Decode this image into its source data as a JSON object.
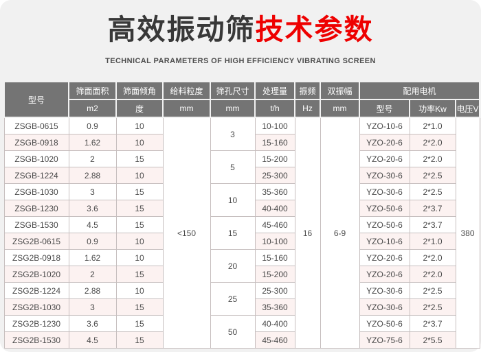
{
  "header": {
    "title_black": "高效振动筛",
    "title_red": "技术参数",
    "subtitle": "TECHNICAL PARAMETERS OF HIGH EFFICIENCY VIBRATING SCREEN"
  },
  "colors": {
    "page_bg": "#f1f1f1",
    "table_header_bg": "#747474",
    "table_header_text": "#ffffff",
    "row_alt_bg": "#fcf2f1",
    "row_bg": "#ffffff",
    "border": "#c6bebe",
    "title_black": "#383838",
    "title_red": "#ee0000",
    "body_text": "#4a4a4a"
  },
  "table": {
    "header": {
      "model": "型号",
      "screen_area": "筛面面积",
      "screen_area_unit": "m2",
      "screen_incline": "筛面倾角",
      "screen_incline_unit": "度",
      "feed_size": "给料粒度",
      "feed_size_unit": "mm",
      "mesh_size": "筛孔尺寸",
      "mesh_size_unit": "mm",
      "capacity": "处理量",
      "capacity_unit": "t/h",
      "frequency": "振频",
      "frequency_unit": "Hz",
      "amplitude": "双振幅",
      "amplitude_unit": "mm",
      "motor": "配用电机",
      "motor_model": "型号",
      "motor_power": "功率Kw",
      "motor_voltage": "电压V"
    },
    "merged": {
      "feed_size": "<150",
      "frequency": "16",
      "amplitude": "6-9",
      "voltage": "380"
    },
    "mesh_sizes": [
      "3",
      "5",
      "10",
      "15",
      "20",
      "25",
      "50"
    ],
    "rows": [
      {
        "model": "ZSGB-0615",
        "area": "0.9",
        "incline": "10",
        "capacity": "10-100",
        "motor_model": "YZO-10-6",
        "power": "2*1.0"
      },
      {
        "model": "ZSGB-0918",
        "area": "1.62",
        "incline": "10",
        "capacity": "15-160",
        "motor_model": "YZO-20-6",
        "power": "2*2.0"
      },
      {
        "model": "ZSGB-1020",
        "area": "2",
        "incline": "15",
        "capacity": "15-200",
        "motor_model": "YZO-20-6",
        "power": "2*2.0"
      },
      {
        "model": "ZSGB-1224",
        "area": "2.88",
        "incline": "10",
        "capacity": "25-300",
        "motor_model": "YZO-30-6",
        "power": "2*2.5"
      },
      {
        "model": "ZSGB-1030",
        "area": "3",
        "incline": "15",
        "capacity": "35-360",
        "motor_model": "YZO-30-6",
        "power": "2*2.5"
      },
      {
        "model": "ZSGB-1230",
        "area": "3.6",
        "incline": "15",
        "capacity": "40-400",
        "motor_model": "YZO-50-6",
        "power": "2*3.7"
      },
      {
        "model": "ZSGB-1530",
        "area": "4.5",
        "incline": "15",
        "capacity": "45-460",
        "motor_model": "YZO-50-6",
        "power": "2*3.7"
      },
      {
        "model": "ZSG2B-0615",
        "area": "0.9",
        "incline": "10",
        "capacity": "10-100",
        "motor_model": "YZO-10-6",
        "power": "2*1.0"
      },
      {
        "model": "ZSG2B-0918",
        "area": "1.62",
        "incline": "10",
        "capacity": "15-160",
        "motor_model": "YZO-20-6",
        "power": "2*2.0"
      },
      {
        "model": "ZSG2B-1020",
        "area": "2",
        "incline": "15",
        "capacity": "15-200",
        "motor_model": "YZO-20-6",
        "power": "2*2.0"
      },
      {
        "model": "ZSG2B-1224",
        "area": "2.88",
        "incline": "10",
        "capacity": "25-300",
        "motor_model": "YZO-30-6",
        "power": "2*2.5"
      },
      {
        "model": "ZSG2B-1030",
        "area": "3",
        "incline": "15",
        "capacity": "35-360",
        "motor_model": "YZO-30-6",
        "power": "2*2.5"
      },
      {
        "model": "ZSG2B-1230",
        "area": "3.6",
        "incline": "15",
        "capacity": "40-400",
        "motor_model": "YZO-50-6",
        "power": "2*3.7"
      },
      {
        "model": "ZSG2B-1530",
        "area": "4.5",
        "incline": "15",
        "capacity": "45-460",
        "motor_model": "YZO-75-6",
        "power": "2*5.5"
      }
    ]
  }
}
